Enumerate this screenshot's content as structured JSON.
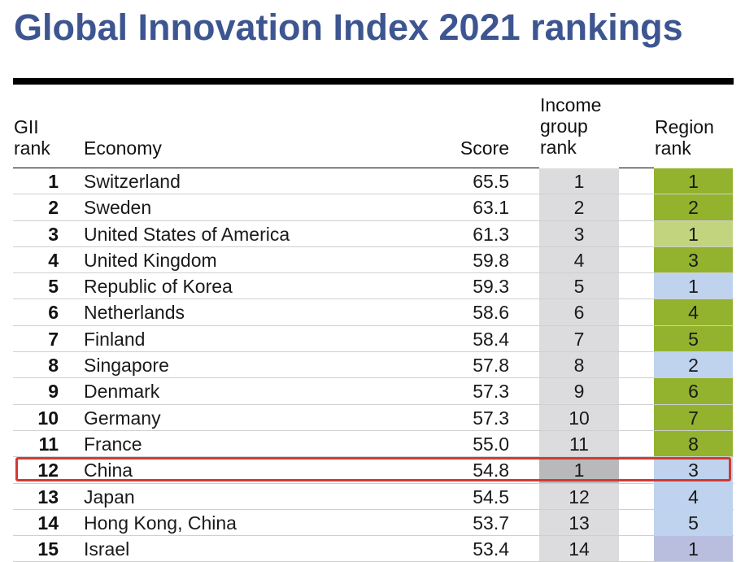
{
  "title": "Global Innovation Index 2021 rankings",
  "headers": {
    "rank": [
      "GII",
      "rank"
    ],
    "economy": "Economy",
    "score": "Score",
    "income": [
      "Income",
      "group",
      "rank"
    ],
    "region": [
      "Region",
      "rank"
    ]
  },
  "colors": {
    "title": "#3d5590",
    "income_cell": "#dcdcde",
    "income_cell_highlight": "#b9b9bc",
    "region_europe": "#93b22e",
    "region_north_america": "#c3d47f",
    "region_asia_pacific": "#bfd3ee",
    "region_north_africa_west_asia": "#b9bedf",
    "highlight_border": "#d23a34"
  },
  "highlighted_economy": "China",
  "rows": [
    {
      "rank": "1",
      "economy": "Switzerland",
      "score": "65.5",
      "income_rank": "1",
      "region_rank": "1",
      "region": "europe"
    },
    {
      "rank": "2",
      "economy": "Sweden",
      "score": "63.1",
      "income_rank": "2",
      "region_rank": "2",
      "region": "europe"
    },
    {
      "rank": "3",
      "economy": "United States of America",
      "score": "61.3",
      "income_rank": "3",
      "region_rank": "1",
      "region": "north_america"
    },
    {
      "rank": "4",
      "economy": "United Kingdom",
      "score": "59.8",
      "income_rank": "4",
      "region_rank": "3",
      "region": "europe"
    },
    {
      "rank": "5",
      "economy": "Republic of Korea",
      "score": "59.3",
      "income_rank": "5",
      "region_rank": "1",
      "region": "asia_pacific"
    },
    {
      "rank": "6",
      "economy": "Netherlands",
      "score": "58.6",
      "income_rank": "6",
      "region_rank": "4",
      "region": "europe"
    },
    {
      "rank": "7",
      "economy": "Finland",
      "score": "58.4",
      "income_rank": "7",
      "region_rank": "5",
      "region": "europe"
    },
    {
      "rank": "8",
      "economy": "Singapore",
      "score": "57.8",
      "income_rank": "8",
      "region_rank": "2",
      "region": "asia_pacific"
    },
    {
      "rank": "9",
      "economy": "Denmark",
      "score": "57.3",
      "income_rank": "9",
      "region_rank": "6",
      "region": "europe"
    },
    {
      "rank": "10",
      "economy": "Germany",
      "score": "57.3",
      "income_rank": "10",
      "region_rank": "7",
      "region": "europe"
    },
    {
      "rank": "11",
      "economy": "France",
      "score": "55.0",
      "income_rank": "11",
      "region_rank": "8",
      "region": "europe"
    },
    {
      "rank": "12",
      "economy": "China",
      "score": "54.8",
      "income_rank": "1",
      "region_rank": "3",
      "region": "asia_pacific",
      "highlighted": true
    },
    {
      "rank": "13",
      "economy": "Japan",
      "score": "54.5",
      "income_rank": "12",
      "region_rank": "4",
      "region": "asia_pacific"
    },
    {
      "rank": "14",
      "economy": "Hong Kong, China",
      "score": "53.7",
      "income_rank": "13",
      "region_rank": "5",
      "region": "asia_pacific"
    },
    {
      "rank": "15",
      "economy": "Israel",
      "score": "53.4",
      "income_rank": "14",
      "region_rank": "1",
      "region": "north_africa_west_asia"
    }
  ]
}
